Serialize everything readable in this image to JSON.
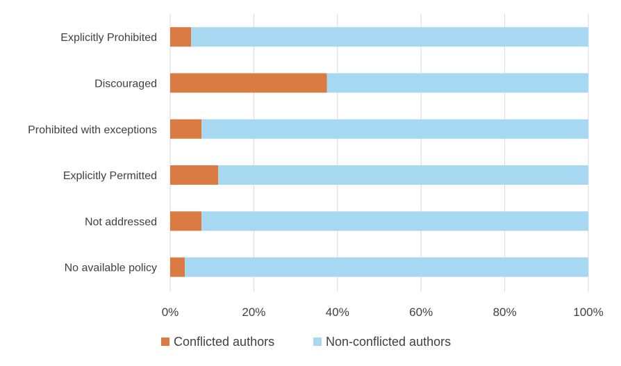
{
  "chart_data": {
    "type": "bar",
    "orientation": "horizontal",
    "stacked": true,
    "percent_stacked": true,
    "categories": [
      "Explicitly Prohibited",
      "Discouraged",
      "Prohibited with exceptions",
      "Explicitly Permitted",
      "Not addressed",
      "No available policy"
    ],
    "series": [
      {
        "name": "Conflicted authors",
        "color": "#d97b42",
        "values": [
          5,
          37.5,
          7.5,
          11.5,
          7.5,
          3.5
        ]
      },
      {
        "name": "Non-conflicted authors",
        "color": "#a6d8f2",
        "values": [
          95,
          62.5,
          92.5,
          88.5,
          92.5,
          96.5
        ]
      }
    ],
    "title": "",
    "xlabel": "",
    "ylabel": "",
    "xlim": [
      0,
      100
    ],
    "x_ticks": [
      "0%",
      "20%",
      "40%",
      "60%",
      "80%",
      "100%"
    ],
    "x_tick_values": [
      0,
      20,
      40,
      60,
      80,
      100
    ],
    "grid": "vertical",
    "legend_position": "bottom-center"
  }
}
